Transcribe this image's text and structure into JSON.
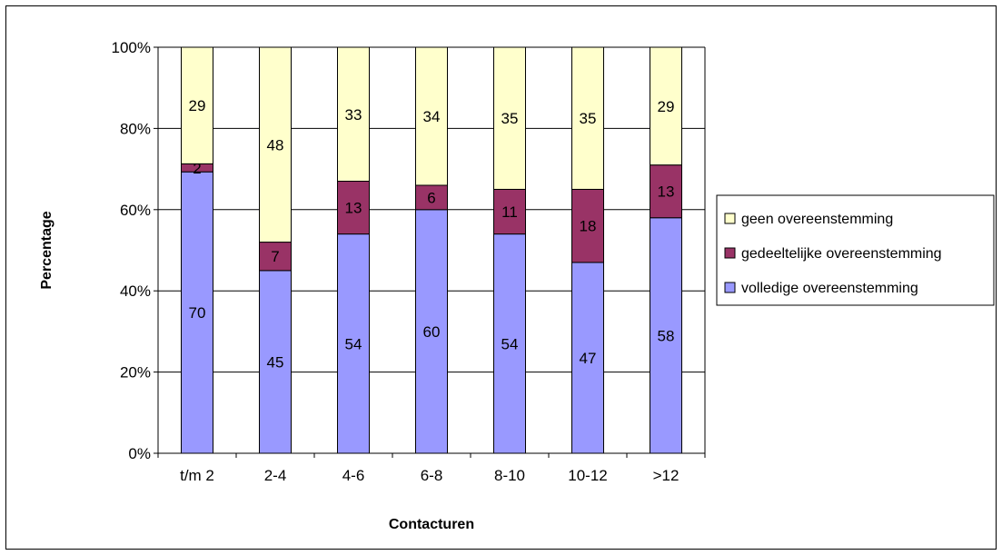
{
  "chart_data": {
    "type": "bar",
    "stacked": true,
    "normalized_percent": true,
    "categories": [
      "t/m 2",
      "2-4",
      "4-6",
      "6-8",
      "8-10",
      "10-12",
      ">12"
    ],
    "series": [
      {
        "name": "volledige overeenstemming",
        "values": [
          70,
          45,
          54,
          60,
          54,
          47,
          58
        ],
        "color": "#9999ff"
      },
      {
        "name": "gedeeltelijke overeenstemming",
        "values": [
          2,
          7,
          13,
          6,
          11,
          18,
          13
        ],
        "color": "#993366"
      },
      {
        "name": "geen overeenstemming",
        "values": [
          29,
          48,
          33,
          34,
          35,
          35,
          29
        ],
        "color": "#ffffcc"
      }
    ],
    "legend_order": [
      "geen overeenstemming",
      "gedeeltelijke overeenstemming",
      "volledige overeenstemming"
    ],
    "xlabel": "Contacturen",
    "ylabel": "Percentage",
    "ylim": [
      0,
      100
    ],
    "yticks": [
      "0%",
      "20%",
      "40%",
      "60%",
      "80%",
      "100%"
    ],
    "grid": true,
    "legend_position": "right"
  }
}
